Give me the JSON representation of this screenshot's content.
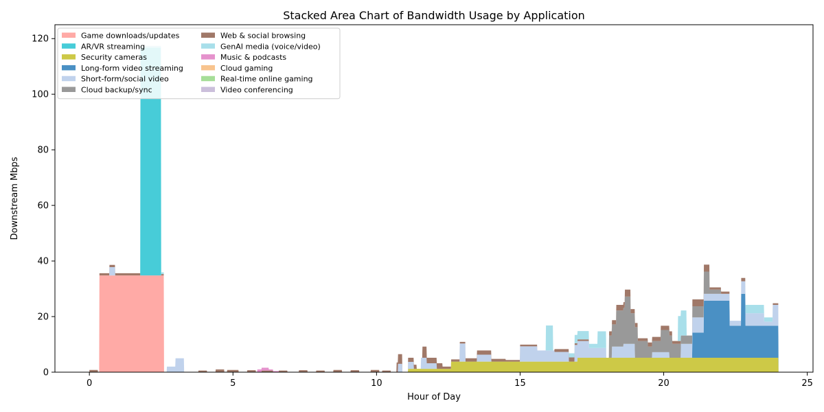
{
  "chart_data": {
    "type": "area",
    "stacked": true,
    "title": "Stacked Area Chart of Bandwidth Usage by Application",
    "xlabel": "Hour of Day",
    "ylabel": "Downstream Mbps",
    "xlim": [
      -1.2,
      25.2
    ],
    "ylim": [
      0,
      125
    ],
    "xticks": [
      0,
      5,
      10,
      15,
      20,
      25
    ],
    "yticks": [
      0,
      20,
      40,
      60,
      80,
      100,
      120
    ],
    "grid": false,
    "legend": {
      "placement": "top-left",
      "columns": 2,
      "entries": [
        "Game downloads/updates",
        "AR/VR streaming",
        "Security cameras",
        "Long-form video streaming",
        "Short-form/social video",
        "Cloud backup/sync",
        "Web & social browsing",
        "GenAI media (voice/video)",
        "Music & podcasts",
        "Cloud gaming",
        "Real-time online gaming",
        "Video conferencing"
      ]
    },
    "series": [
      {
        "name": "Game downloads/updates",
        "color": "#ffaaa6",
        "segments": [
          {
            "x0": 0.35,
            "x1": 2.6,
            "v": 34.8
          }
        ]
      },
      {
        "name": "AR/VR streaming",
        "color": "#47ccd8",
        "segments": [
          {
            "x0": 1.78,
            "x1": 2.5,
            "v": 82
          }
        ]
      },
      {
        "name": "Security cameras",
        "color": "#cdc947",
        "segments": [
          {
            "x0": 11.1,
            "x1": 12.6,
            "v": 1.2
          },
          {
            "x0": 12.6,
            "x1": 17.0,
            "v": 3.8
          },
          {
            "x0": 17.0,
            "x1": 24.0,
            "v": 5.2
          }
        ]
      },
      {
        "name": "Long-form video streaming",
        "color": "#4a90c4",
        "segments": [
          {
            "x0": 21.0,
            "x1": 21.4,
            "v": 9
          },
          {
            "x0": 21.4,
            "x1": 22.3,
            "v": 20.5
          },
          {
            "x0": 22.3,
            "x1": 22.7,
            "v": 11.5
          },
          {
            "x0": 22.7,
            "x1": 22.85,
            "v": 23
          },
          {
            "x0": 22.85,
            "x1": 24.0,
            "v": 11.5
          }
        ]
      },
      {
        "name": "Short-form/social video",
        "color": "#c0d2ec",
        "segments": [
          {
            "x0": 0.7,
            "x1": 0.9,
            "v": 3
          },
          {
            "x0": 2.7,
            "x1": 3.0,
            "v": 2
          },
          {
            "x0": 3.0,
            "x1": 3.3,
            "v": 5
          },
          {
            "x0": 10.75,
            "x1": 10.9,
            "v": 3
          },
          {
            "x0": 11.1,
            "x1": 11.3,
            "v": 2.5
          },
          {
            "x0": 11.55,
            "x1": 11.75,
            "v": 4
          },
          {
            "x0": 11.75,
            "x1": 12.1,
            "v": 2
          },
          {
            "x0": 12.9,
            "x1": 13.1,
            "v": 6.5
          },
          {
            "x0": 13.5,
            "x1": 14.0,
            "v": 2.5
          },
          {
            "x0": 15.0,
            "x1": 15.6,
            "v": 5.5
          },
          {
            "x0": 15.6,
            "x1": 16.2,
            "v": 4
          },
          {
            "x0": 16.2,
            "x1": 16.7,
            "v": 3.5
          },
          {
            "x0": 16.9,
            "x1": 17.4,
            "v": 6
          },
          {
            "x0": 17.4,
            "x1": 18.0,
            "v": 3.5
          },
          {
            "x0": 18.2,
            "x1": 18.6,
            "v": 4
          },
          {
            "x0": 18.6,
            "x1": 19.0,
            "v": 5
          },
          {
            "x0": 19.6,
            "x1": 20.2,
            "v": 2
          },
          {
            "x0": 20.6,
            "x1": 21.0,
            "v": 5
          },
          {
            "x0": 21.0,
            "x1": 21.4,
            "v": 5.5
          },
          {
            "x0": 21.4,
            "x1": 22.3,
            "v": 2.5
          },
          {
            "x0": 22.3,
            "x1": 22.7,
            "v": 1.8
          },
          {
            "x0": 22.7,
            "x1": 22.85,
            "v": 4.5
          },
          {
            "x0": 22.85,
            "x1": 23.5,
            "v": 4.5
          },
          {
            "x0": 23.5,
            "x1": 23.8,
            "v": 1.5
          },
          {
            "x0": 23.8,
            "x1": 24.0,
            "v": 7.5
          }
        ]
      },
      {
        "name": "Cloud backup/sync",
        "color": "#999999",
        "segments": [
          {
            "x0": 18.1,
            "x1": 18.35,
            "v": 8
          },
          {
            "x0": 18.35,
            "x1": 18.65,
            "v": 13
          },
          {
            "x0": 18.65,
            "x1": 18.85,
            "v": 17
          },
          {
            "x0": 18.85,
            "x1": 19.1,
            "v": 11
          },
          {
            "x0": 19.1,
            "x1": 19.45,
            "v": 6
          },
          {
            "x0": 19.45,
            "x1": 19.9,
            "v": 4
          },
          {
            "x0": 19.9,
            "x1": 20.3,
            "v": 8
          },
          {
            "x0": 20.3,
            "x1": 20.6,
            "v": 5
          },
          {
            "x0": 20.6,
            "x1": 21.0,
            "v": 3
          },
          {
            "x0": 21.0,
            "x1": 21.4,
            "v": 4
          },
          {
            "x0": 21.4,
            "x1": 21.6,
            "v": 8
          },
          {
            "x0": 21.6,
            "x1": 22.0,
            "v": 1.5
          }
        ]
      },
      {
        "name": "Web & social browsing",
        "color": "#a07868",
        "segments": [
          {
            "x0": 0.0,
            "x1": 0.3,
            "v": 0.8
          },
          {
            "x0": 0.35,
            "x1": 1.8,
            "v": 0.8
          },
          {
            "x0": 2.5,
            "x1": 2.6,
            "v": 0.5
          },
          {
            "x0": 3.8,
            "x1": 4.1,
            "v": 0.6
          },
          {
            "x0": 4.4,
            "x1": 4.7,
            "v": 1.0
          },
          {
            "x0": 4.8,
            "x1": 5.2,
            "v": 0.8
          },
          {
            "x0": 5.5,
            "x1": 5.8,
            "v": 0.7
          },
          {
            "x0": 6.0,
            "x1": 6.4,
            "v": 0.6
          },
          {
            "x0": 6.6,
            "x1": 6.9,
            "v": 0.6
          },
          {
            "x0": 7.3,
            "x1": 7.6,
            "v": 0.7
          },
          {
            "x0": 7.9,
            "x1": 8.2,
            "v": 0.6
          },
          {
            "x0": 8.5,
            "x1": 8.8,
            "v": 0.8
          },
          {
            "x0": 9.1,
            "x1": 9.4,
            "v": 0.7
          },
          {
            "x0": 9.8,
            "x1": 10.1,
            "v": 0.8
          },
          {
            "x0": 10.2,
            "x1": 10.5,
            "v": 0.6
          },
          {
            "x0": 10.7,
            "x1": 10.9,
            "v": 3.5
          },
          {
            "x0": 11.1,
            "x1": 11.4,
            "v": 1.5
          },
          {
            "x0": 11.6,
            "x1": 11.75,
            "v": 4
          },
          {
            "x0": 11.75,
            "x1": 12.3,
            "v": 2
          },
          {
            "x0": 12.3,
            "x1": 12.6,
            "v": 0.8
          },
          {
            "x0": 12.6,
            "x1": 12.9,
            "v": 0.8
          },
          {
            "x0": 12.9,
            "x1": 13.1,
            "v": 0.6
          },
          {
            "x0": 13.1,
            "x1": 13.5,
            "v": 1.2
          },
          {
            "x0": 13.5,
            "x1": 14.0,
            "v": 1.5
          },
          {
            "x0": 14.0,
            "x1": 14.5,
            "v": 1.0
          },
          {
            "x0": 14.5,
            "x1": 15.0,
            "v": 0.6
          },
          {
            "x0": 15.0,
            "x1": 15.6,
            "v": 0.6
          },
          {
            "x0": 16.2,
            "x1": 16.7,
            "v": 1.0
          },
          {
            "x0": 16.7,
            "x1": 16.9,
            "v": 1.5
          },
          {
            "x0": 16.9,
            "x1": 17.4,
            "v": 0.6
          },
          {
            "x0": 18.1,
            "x1": 18.35,
            "v": 1.5
          },
          {
            "x0": 18.35,
            "x1": 18.65,
            "v": 2
          },
          {
            "x0": 18.65,
            "x1": 18.85,
            "v": 2.5
          },
          {
            "x0": 18.85,
            "x1": 19.1,
            "v": 1.5
          },
          {
            "x0": 19.1,
            "x1": 19.45,
            "v": 1.0
          },
          {
            "x0": 19.45,
            "x1": 19.9,
            "v": 1.5
          },
          {
            "x0": 19.9,
            "x1": 20.3,
            "v": 1.5
          },
          {
            "x0": 20.3,
            "x1": 20.6,
            "v": 1.0
          },
          {
            "x0": 21.0,
            "x1": 21.4,
            "v": 2.5
          },
          {
            "x0": 21.4,
            "x1": 21.6,
            "v": 2.5
          },
          {
            "x0": 21.6,
            "x1": 22.3,
            "v": 0.8
          },
          {
            "x0": 22.7,
            "x1": 22.85,
            "v": 1.2
          },
          {
            "x0": 23.8,
            "x1": 24.0,
            "v": 0.6
          }
        ]
      },
      {
        "name": "GenAI media (voice/video)",
        "color": "#a8dfea",
        "segments": [
          {
            "x0": 1.78,
            "x1": 2.6,
            "v": 0.6
          },
          {
            "x0": 15.9,
            "x1": 16.15,
            "v": 9
          },
          {
            "x0": 16.7,
            "x1": 16.9,
            "v": 1.5
          },
          {
            "x0": 16.9,
            "x1": 17.4,
            "v": 3
          },
          {
            "x0": 17.4,
            "x1": 17.7,
            "v": 1.5
          },
          {
            "x0": 17.7,
            "x1": 18.0,
            "v": 6
          },
          {
            "x0": 20.5,
            "x1": 20.8,
            "v": 9
          },
          {
            "x0": 22.85,
            "x1": 23.5,
            "v": 3
          },
          {
            "x0": 23.5,
            "x1": 23.8,
            "v": 1.5
          }
        ]
      },
      {
        "name": "Music & podcasts",
        "color": "#e592cc",
        "segments": [
          {
            "x0": 5.85,
            "x1": 6.25,
            "v": 1.0
          },
          {
            "x0": 6.25,
            "x1": 6.6,
            "v": 0.4
          }
        ]
      },
      {
        "name": "Cloud gaming",
        "color": "#f8c48e",
        "segments": []
      },
      {
        "name": "Real-time online gaming",
        "color": "#a6de98",
        "segments": []
      },
      {
        "name": "Video conferencing",
        "color": "#cbbfdb",
        "segments": []
      }
    ]
  }
}
